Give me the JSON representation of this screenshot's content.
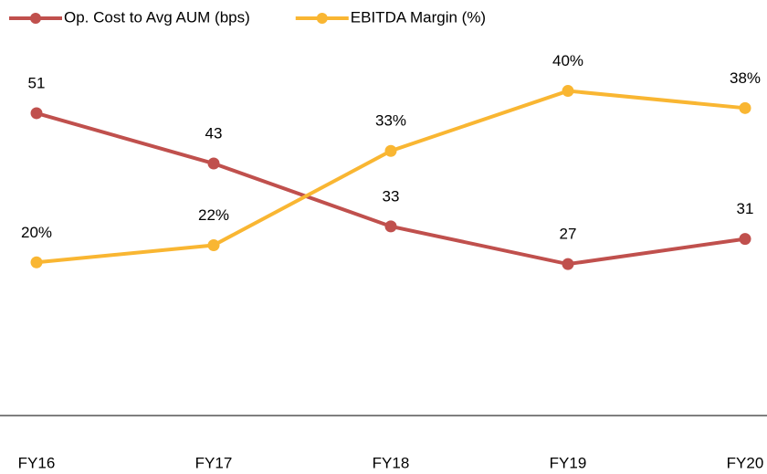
{
  "chart_data": {
    "type": "line",
    "categories": [
      "FY16",
      "FY17",
      "FY18",
      "FY19",
      "FY20"
    ],
    "series": [
      {
        "name": "Op. Cost to Avg AUM (bps)",
        "color": "#c0504d",
        "values": [
          51,
          43,
          33,
          27,
          31
        ]
      },
      {
        "name": "EBITDA Margin (%)",
        "color": "#f9b632",
        "axis": "y2",
        "values": [
          20,
          22,
          33,
          40,
          38
        ],
        "value_labels": [
          "20%",
          "22%",
          "33%",
          "40%",
          "38%"
        ]
      }
    ],
    "ylim": [
      0,
      60
    ],
    "y2lim": [
      0,
      44
    ],
    "legend": "top-left"
  }
}
